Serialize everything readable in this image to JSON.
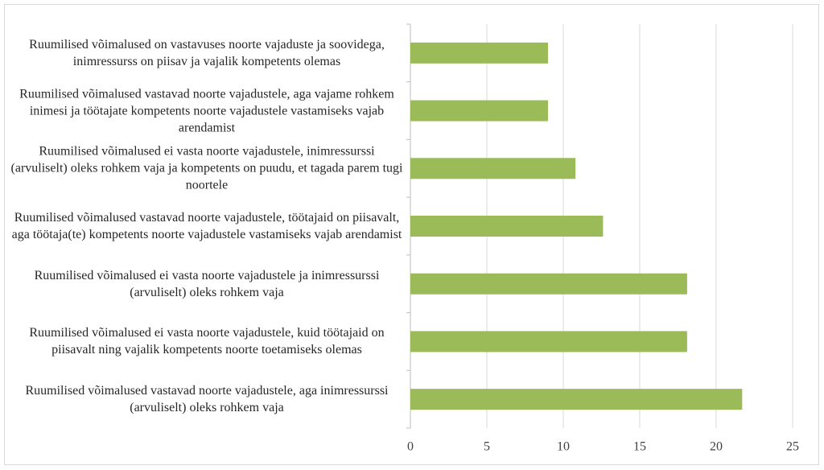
{
  "chart_data": {
    "type": "bar",
    "orientation": "horizontal",
    "categories": [
      "Ruumilised võimalused on vastavuses noorte vajaduste ja soovidega, inimressurss on piisav ja vajalik kompetents olemas",
      "Ruumilised võimalused vastavad noorte vajadustele, aga vajame rohkem inimesi ja töötajate kompetents noorte vajadustele vastamiseks vajab arendamist",
      "Ruumilised võimalused ei vasta noorte vajadustele, inimressurssi (arvuliselt) oleks rohkem vaja ja kompetents on puudu, et tagada parem tugi noortele",
      "Ruumilised võimalused vastavad noorte vajadustele, töötajaid on piisavalt, aga töötaja(te) kompetents noorte vajadustele vastamiseks vajab arendamist",
      "Ruumilised võimalused ei vasta noorte vajadustele ja inimressurssi (arvuliselt) oleks rohkem vaja",
      "Ruumilised võimalused ei vasta noorte vajadustele, kuid töötajaid on piisavalt ning vajalik kompetents noorte toetamiseks olemas",
      "Ruumilised võimalused vastavad noorte vajadustele, aga inimressurssi (arvuliselt) oleks rohkem vaja"
    ],
    "values": [
      9,
      9,
      10.8,
      12.6,
      18.1,
      18.1,
      21.7
    ],
    "color": "#9bbb59",
    "xlim": [
      0,
      25
    ],
    "xticks": [
      0,
      5,
      10,
      15,
      20,
      25
    ],
    "grid": true
  }
}
